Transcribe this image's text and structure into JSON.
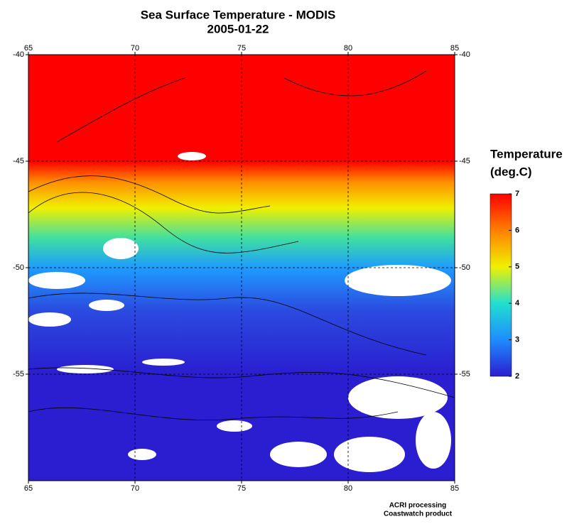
{
  "title": "Sea Surface Temperature - MODIS",
  "subtitle": "2005-01-22",
  "map": {
    "xlim": [
      65,
      85
    ],
    "xticks": [
      65,
      70,
      75,
      80,
      85
    ],
    "ylim": [
      -40,
      -60
    ],
    "yticks": [
      -40,
      -45,
      -50,
      -55
    ]
  },
  "colorbar": {
    "title": "Temperature",
    "units": "(deg.C)",
    "range": [
      2,
      7
    ],
    "ticks": [
      2,
      3,
      4,
      5,
      6,
      7
    ],
    "colors": [
      "#2a1ed0",
      "#1e8cff",
      "#20e0d0",
      "#f0f000",
      "#ff8000",
      "#ff0000"
    ]
  },
  "credits": [
    "ACRI processing",
    "Coastwatch product"
  ]
}
